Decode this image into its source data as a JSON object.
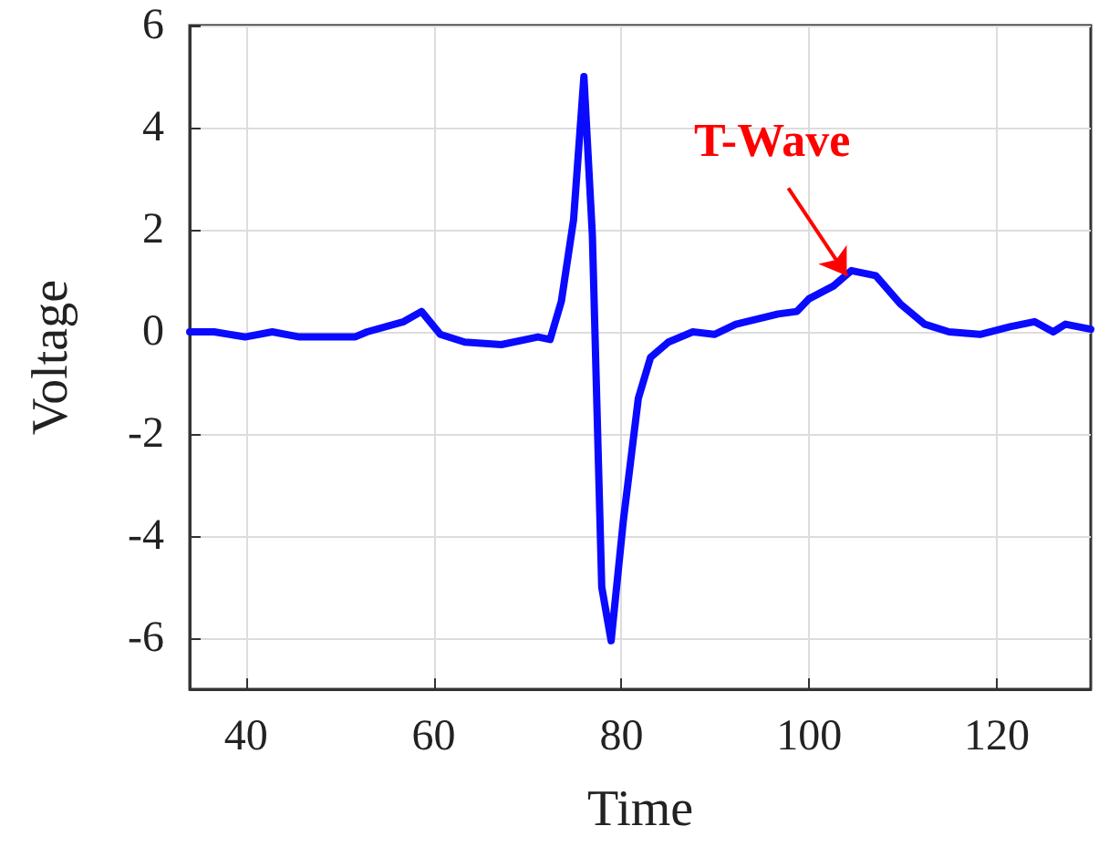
{
  "chart_data": {
    "type": "line",
    "xlabel": "Time",
    "ylabel": "Voltage",
    "x": [
      34,
      36.6,
      39.9,
      42.8,
      45.7,
      51.6,
      52.9,
      56.8,
      58.7,
      60.7,
      63.3,
      67.2,
      71.1,
      72.4,
      73.6,
      74.9,
      76.0,
      76.9,
      77.9,
      78.9,
      80.2,
      81.8,
      83.1,
      85.0,
      87.6,
      89.9,
      92.2,
      96.7,
      98.7,
      100.0,
      102.6,
      104.5,
      107.1,
      109.7,
      112.3,
      114.9,
      118.2,
      121.4,
      124.0,
      126.0,
      127.3,
      130
    ],
    "series": [
      {
        "color": "#0a0aff",
        "values": [
          0,
          0,
          -0.1,
          0,
          -0.1,
          -0.1,
          0,
          0.2,
          0.4,
          -0.05,
          -0.2,
          -0.25,
          -0.1,
          -0.15,
          0.6,
          2.2,
          5.0,
          1.9,
          -5.0,
          -6.05,
          -3.7,
          -1.3,
          -0.5,
          -0.2,
          0,
          -0.05,
          0.15,
          0.35,
          0.4,
          0.65,
          0.9,
          1.2,
          1.1,
          0.55,
          0.15,
          0,
          -0.05,
          0.1,
          0.2,
          0,
          0.15,
          0.05
        ]
      }
    ],
    "annotations": [
      {
        "text": "T-Wave",
        "x": 104,
        "y": 1.1
      }
    ],
    "xlim": [
      34,
      130
    ],
    "xticks": [
      40,
      60,
      80,
      100,
      120
    ],
    "ylim": [
      -7,
      6
    ],
    "yticks": [
      -6,
      -4,
      -2,
      0,
      2,
      4,
      6
    ],
    "grid": true,
    "marker": "none",
    "line_style": "solid"
  }
}
